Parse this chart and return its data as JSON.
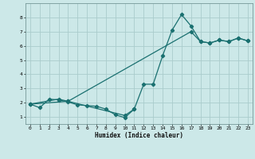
{
  "background_color": "#cce8e8",
  "grid_color": "#aacccc",
  "line_color": "#1a7070",
  "xlabel": "Humidex (Indice chaleur)",
  "xlim": [
    -0.5,
    23.5
  ],
  "ylim": [
    0.5,
    9.0
  ],
  "xticks": [
    0,
    1,
    2,
    3,
    4,
    5,
    6,
    7,
    8,
    9,
    10,
    11,
    12,
    13,
    14,
    15,
    16,
    17,
    18,
    19,
    20,
    21,
    22,
    23
  ],
  "yticks": [
    1,
    2,
    3,
    4,
    5,
    6,
    7,
    8
  ],
  "line1": {
    "x": [
      0,
      1,
      2,
      3,
      4,
      5,
      6,
      7,
      8,
      9,
      10,
      11
    ],
    "y": [
      1.9,
      1.65,
      2.25,
      2.2,
      2.05,
      1.85,
      1.8,
      1.75,
      1.55,
      1.15,
      0.95,
      1.55
    ]
  },
  "line2": {
    "x": [
      0,
      3,
      4,
      10,
      11,
      12,
      13,
      14,
      15,
      16,
      17,
      18,
      19,
      20,
      21,
      22,
      23
    ],
    "y": [
      1.9,
      2.25,
      2.1,
      1.1,
      1.55,
      3.3,
      3.3,
      5.3,
      7.1,
      8.2,
      7.4,
      6.3,
      6.2,
      6.4,
      6.3,
      6.55,
      6.35
    ]
  },
  "line3": {
    "x": [
      0,
      4,
      17,
      18,
      19,
      20,
      21,
      22,
      23
    ],
    "y": [
      1.9,
      2.1,
      7.0,
      6.3,
      6.2,
      6.4,
      6.3,
      6.55,
      6.35
    ]
  }
}
